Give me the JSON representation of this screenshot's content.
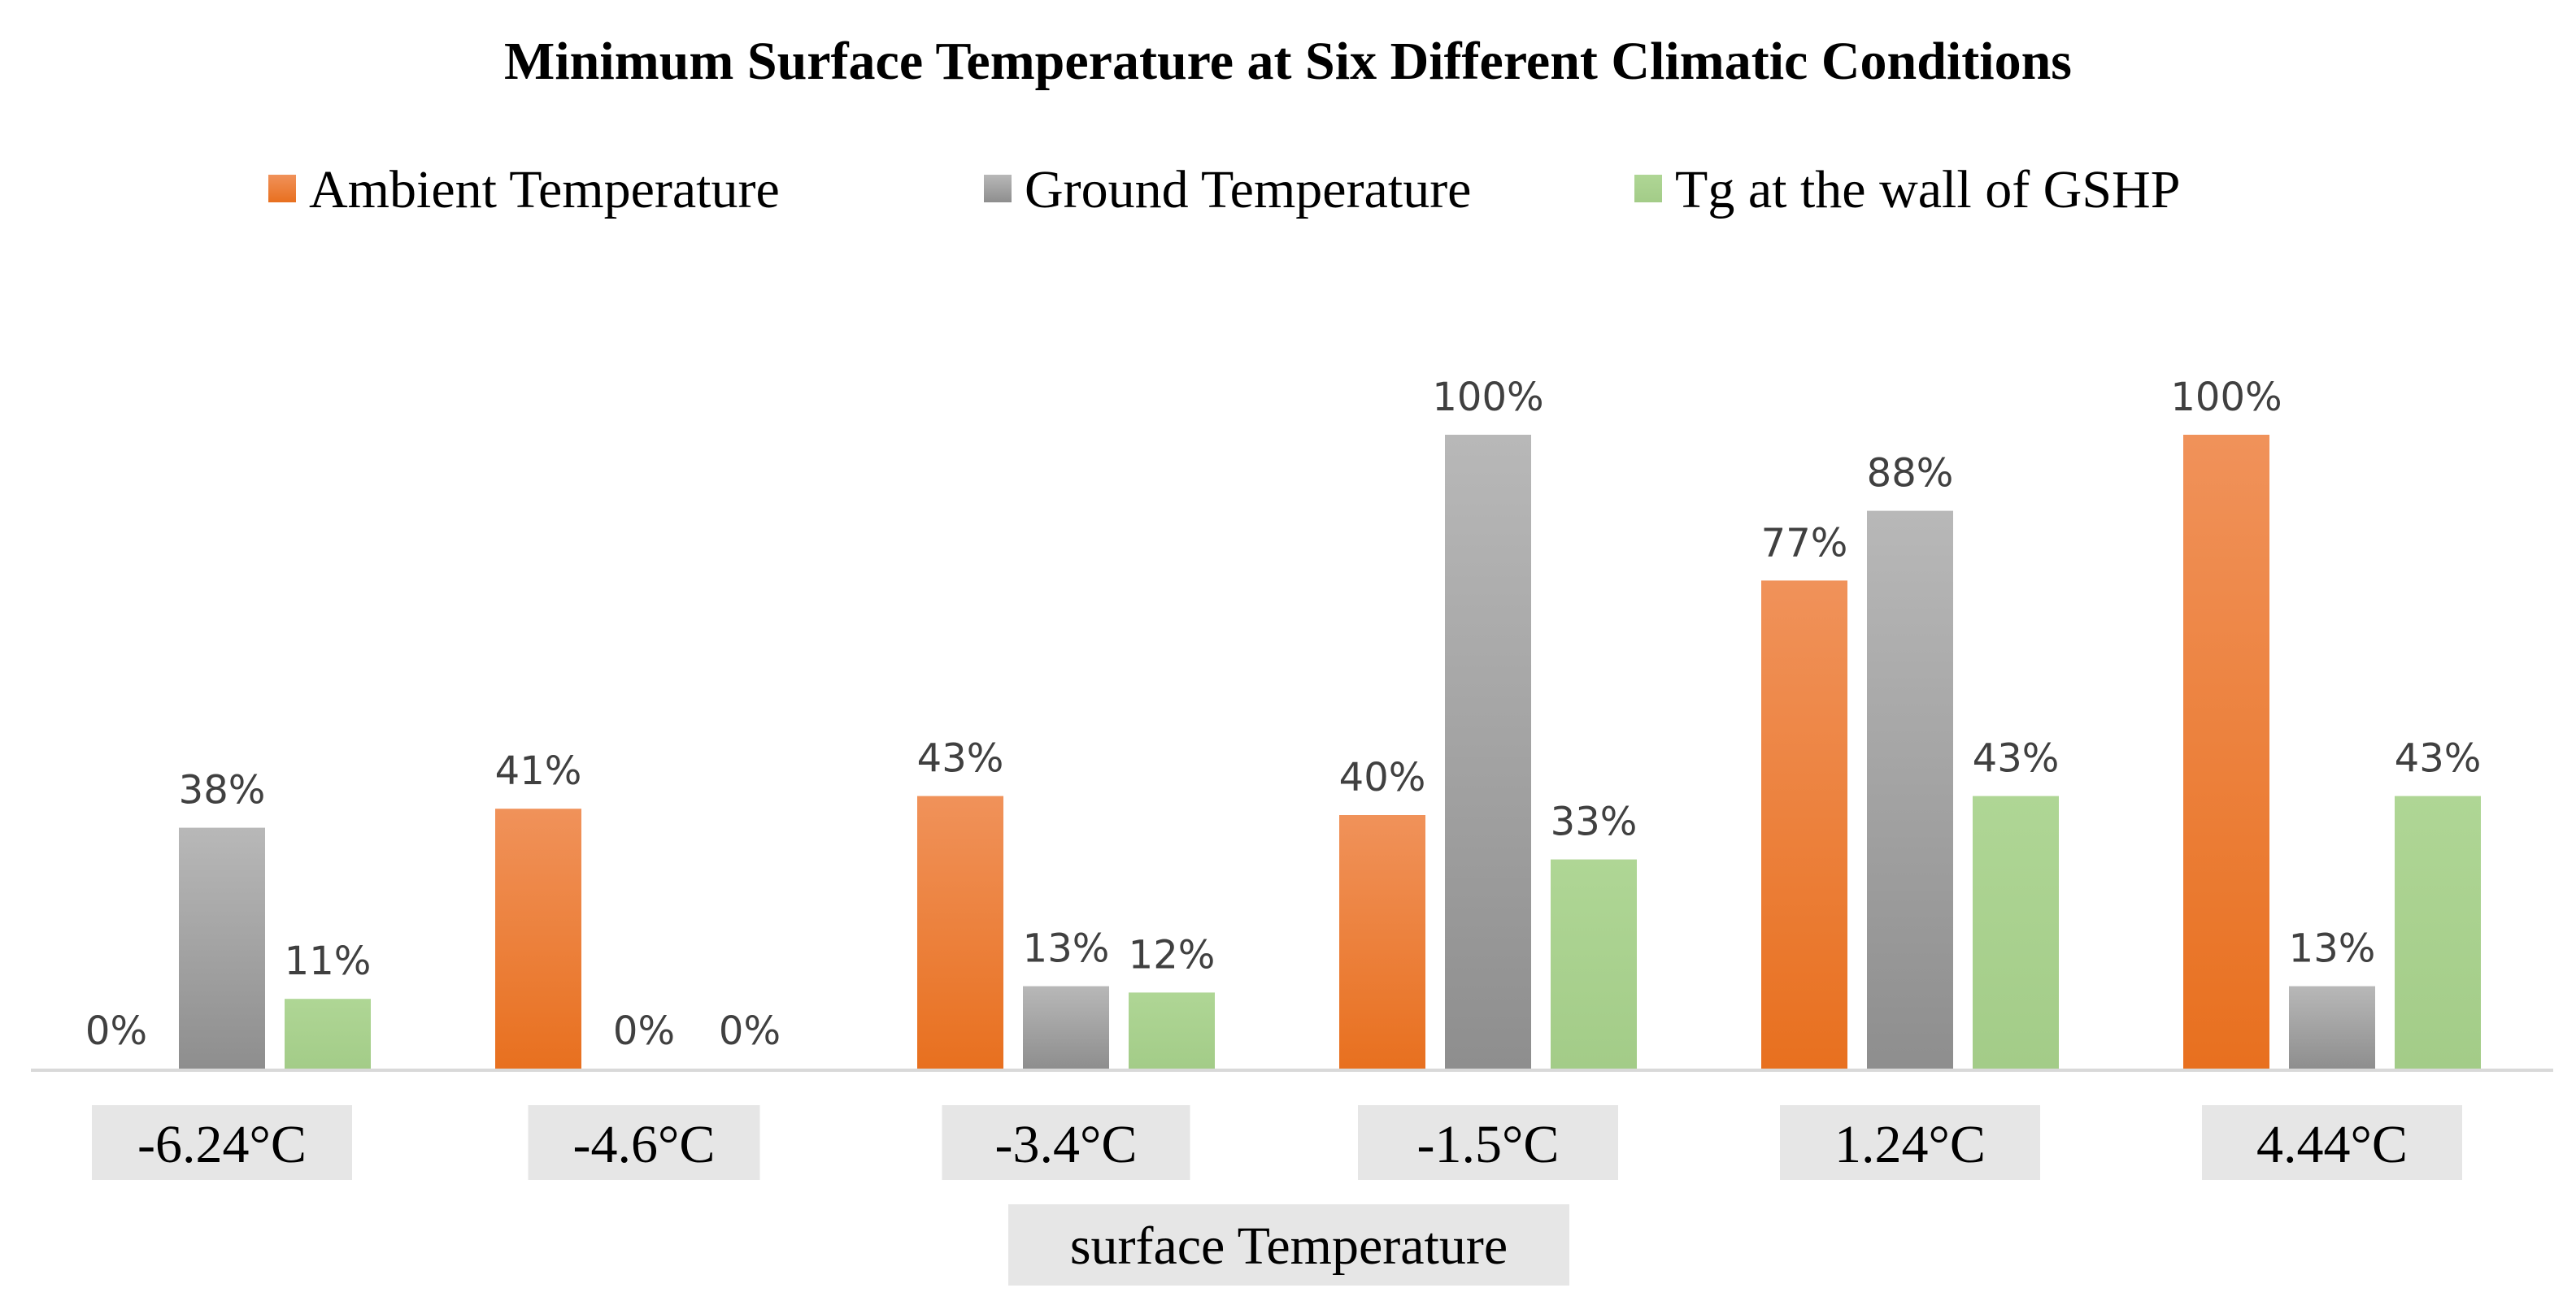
{
  "chart_data": {
    "type": "bar",
    "title": "Minimum Surface Temperature at Six Different Climatic Conditions",
    "xlabel": "surface Temperature",
    "ylabel": "",
    "categories": [
      "-6.24°C",
      "-4.6°C",
      "-3.4°C",
      "-1.5°C",
      "1.24°C",
      "4.44°C"
    ],
    "ylim": [
      0,
      100
    ],
    "value_suffix": "%",
    "legend_position": "top",
    "grid": false,
    "series": [
      {
        "name": "Ambient Temperature",
        "color": "#ED7D31",
        "values": [
          0,
          41,
          43,
          40,
          77,
          100
        ]
      },
      {
        "name": "Ground Temperature",
        "color": "#A5A5A5",
        "values": [
          38,
          0,
          13,
          100,
          88,
          13
        ]
      },
      {
        "name": "Tg at the wall of GSHP",
        "color": "#A9D18E",
        "values": [
          11,
          0,
          12,
          33,
          43,
          43
        ]
      }
    ]
  }
}
